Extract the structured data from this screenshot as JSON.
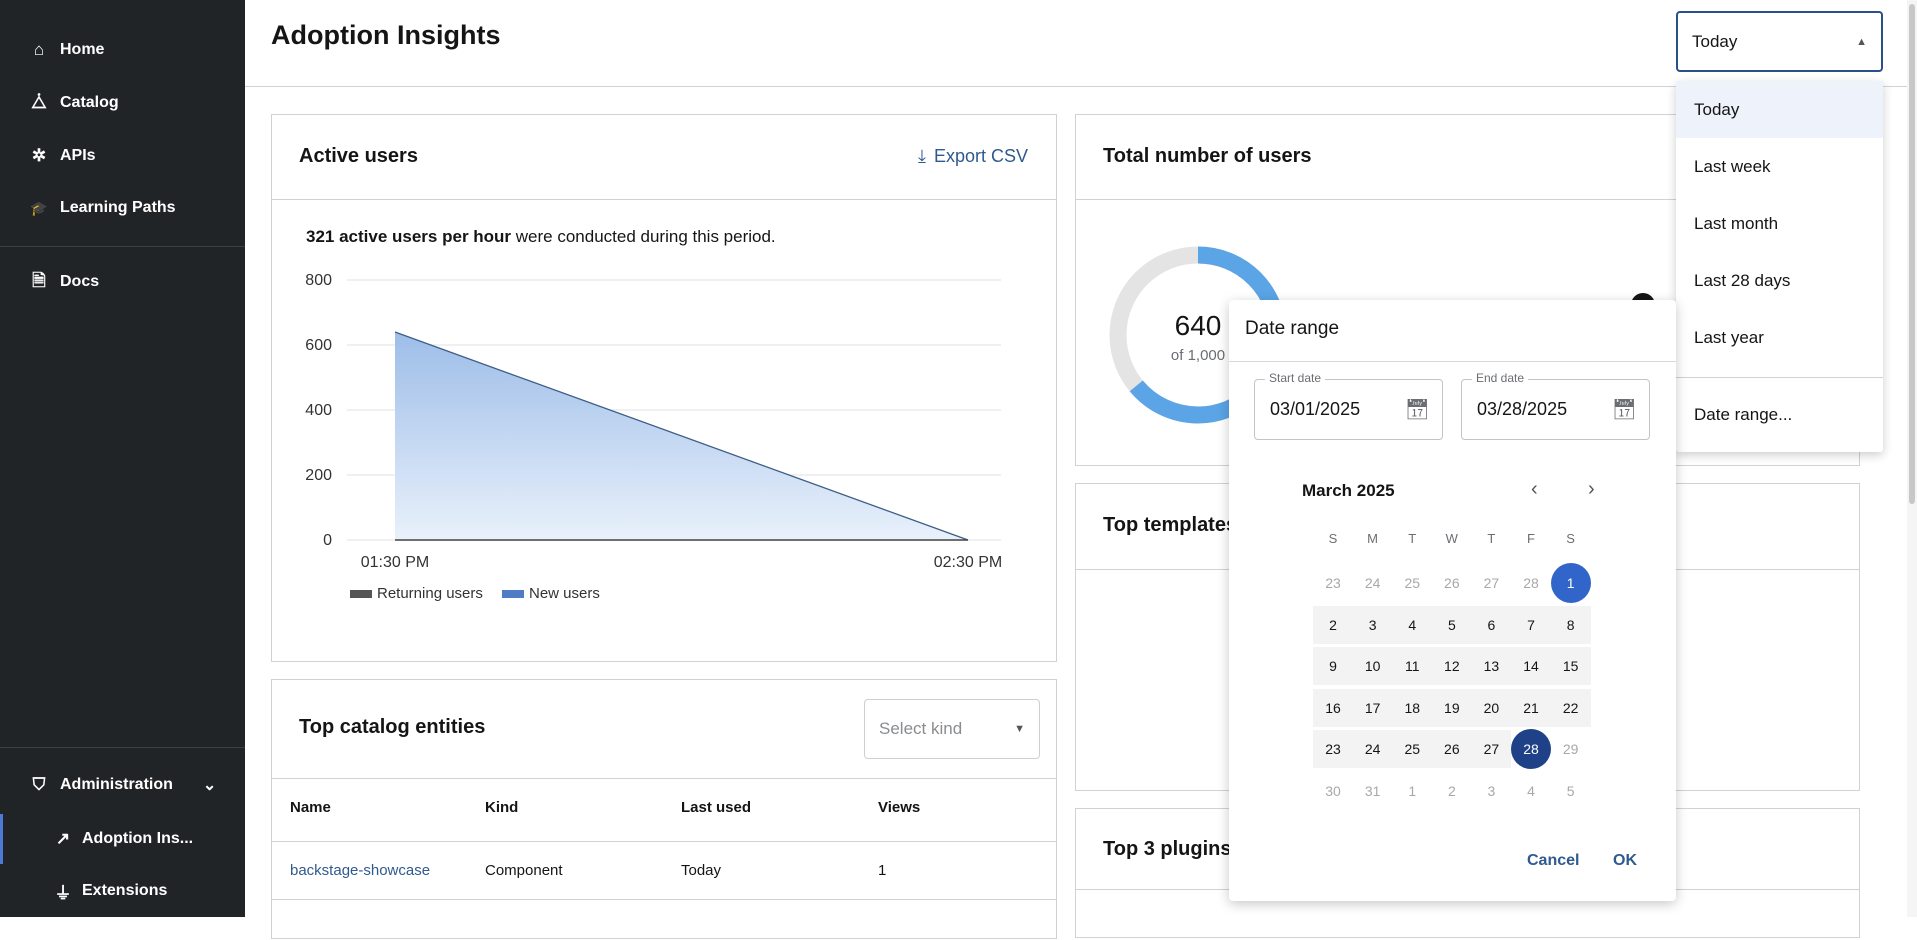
{
  "sidebar": {
    "items": [
      {
        "label": "Home",
        "icon": "home-icon",
        "glyph": "⌂"
      },
      {
        "label": "Catalog",
        "icon": "catalog-icon",
        "glyph": "⧊"
      },
      {
        "label": "APIs",
        "icon": "puzzle-icon",
        "glyph": "✲"
      },
      {
        "label": "Learning Paths",
        "icon": "graduation-cap-icon",
        "glyph": "🎓"
      },
      {
        "label": "Docs",
        "icon": "document-icon",
        "glyph": "🗎"
      }
    ],
    "admin": {
      "label": "Administration",
      "icon": "shield-icon",
      "glyph": "⛉",
      "chevron": "⌄"
    },
    "sub": [
      {
        "label": "Adoption Ins...",
        "icon": "insights-icon",
        "glyph": "↗",
        "active": true
      },
      {
        "label": "Extensions",
        "icon": "plug-icon",
        "glyph": "⏚"
      }
    ]
  },
  "header": {
    "title": "Adoption Insights"
  },
  "period_select": {
    "value": "Today",
    "options": [
      "Today",
      "Last week",
      "Last month",
      "Last 28 days",
      "Last year",
      "Date range..."
    ],
    "highlighted": "Today"
  },
  "active_users": {
    "title": "Active users",
    "export_label": "Export CSV",
    "summary_bold": "321 active users per hour",
    "summary_rest": " were conducted during this period."
  },
  "chart_data": {
    "type": "area",
    "x": [
      "01:30 PM",
      "02:30 PM"
    ],
    "series": [
      {
        "name": "Returning users",
        "values": [
          0,
          0
        ],
        "color": "#555555"
      },
      {
        "name": "New users",
        "values": [
          640,
          0
        ],
        "color": "#4f7cc4"
      }
    ],
    "yticks": [
      0,
      200,
      400,
      600,
      800
    ],
    "ylim": [
      0,
      800
    ],
    "legend": "bottom-left",
    "grid": true
  },
  "total_users": {
    "title": "Total number of users",
    "value": "640",
    "of_label": "of 1,000",
    "fraction": 0.64,
    "accent": "#5ba4e6"
  },
  "top_templates": {
    "title": "Top templates"
  },
  "top_plugins": {
    "title": "Top 3 plugins"
  },
  "catalog": {
    "title": "Top catalog entities",
    "kind_placeholder": "Select kind",
    "columns": [
      "Name",
      "Kind",
      "Last used",
      "Views"
    ],
    "rows": [
      [
        "backstage-showcase",
        "Component",
        "Today",
        "1"
      ]
    ]
  },
  "date_range": {
    "title": "Date range",
    "start_label": "Start date",
    "start_value": "03/01/2025",
    "end_label": "End date",
    "end_value": "03/28/2025",
    "month": "March 2025",
    "weekdays": [
      "S",
      "M",
      "T",
      "W",
      "T",
      "F",
      "S"
    ],
    "weeks": [
      [
        {
          "d": "23",
          "s": "out"
        },
        {
          "d": "24",
          "s": "out"
        },
        {
          "d": "25",
          "s": "out"
        },
        {
          "d": "26",
          "s": "out"
        },
        {
          "d": "27",
          "s": "out"
        },
        {
          "d": "28",
          "s": "out"
        },
        {
          "d": "1",
          "s": "start"
        }
      ],
      [
        {
          "d": "2",
          "s": "in"
        },
        {
          "d": "3",
          "s": "in"
        },
        {
          "d": "4",
          "s": "in"
        },
        {
          "d": "5",
          "s": "in"
        },
        {
          "d": "6",
          "s": "in"
        },
        {
          "d": "7",
          "s": "in"
        },
        {
          "d": "8",
          "s": "in"
        }
      ],
      [
        {
          "d": "9",
          "s": "in"
        },
        {
          "d": "10",
          "s": "in"
        },
        {
          "d": "11",
          "s": "in"
        },
        {
          "d": "12",
          "s": "in"
        },
        {
          "d": "13",
          "s": "in"
        },
        {
          "d": "14",
          "s": "in"
        },
        {
          "d": "15",
          "s": "in"
        }
      ],
      [
        {
          "d": "16",
          "s": "in"
        },
        {
          "d": "17",
          "s": "in"
        },
        {
          "d": "18",
          "s": "in"
        },
        {
          "d": "19",
          "s": "in"
        },
        {
          "d": "20",
          "s": "in"
        },
        {
          "d": "21",
          "s": "in"
        },
        {
          "d": "22",
          "s": "in"
        }
      ],
      [
        {
          "d": "23",
          "s": "in"
        },
        {
          "d": "24",
          "s": "in"
        },
        {
          "d": "25",
          "s": "in"
        },
        {
          "d": "26",
          "s": "in"
        },
        {
          "d": "27",
          "s": "in"
        },
        {
          "d": "28",
          "s": "end"
        },
        {
          "d": "29",
          "s": "out"
        }
      ],
      [
        {
          "d": "30",
          "s": "out"
        },
        {
          "d": "31",
          "s": "out"
        },
        {
          "d": "1",
          "s": "out"
        },
        {
          "d": "2",
          "s": "out"
        },
        {
          "d": "3",
          "s": "out"
        },
        {
          "d": "4",
          "s": "out"
        },
        {
          "d": "5",
          "s": "out"
        }
      ]
    ],
    "cancel_label": "Cancel",
    "ok_label": "OK"
  },
  "colors": {
    "sidebar": "#212427",
    "range_start": "#3165c9",
    "range_end": "#1f4187",
    "range_bg": "#f3f3f3",
    "link": "#2f5a8f"
  }
}
